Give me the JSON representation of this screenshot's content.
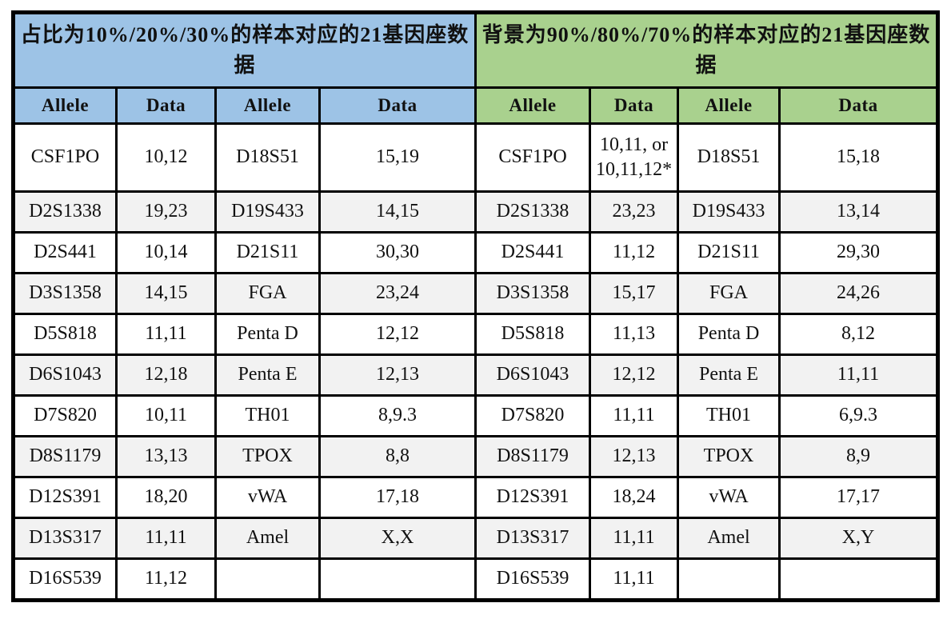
{
  "table": {
    "left": {
      "title": "占比为10%/20%/30%的样本对应的21基因座数据",
      "header_color": "#9DC3E6",
      "columns": [
        "Allele",
        "Data",
        "Allele",
        "Data"
      ],
      "rows": [
        [
          "CSF1PO",
          "10,12",
          "D18S51",
          "15,19"
        ],
        [
          "D2S1338",
          "19,23",
          "D19S433",
          "14,15"
        ],
        [
          "D2S441",
          "10,14",
          "D21S11",
          "30,30"
        ],
        [
          "D3S1358",
          "14,15",
          "FGA",
          "23,24"
        ],
        [
          "D5S818",
          "11,11",
          "Penta D",
          "12,12"
        ],
        [
          "D6S1043",
          "12,18",
          "Penta E",
          "12,13"
        ],
        [
          "D7S820",
          "10,11",
          "TH01",
          "8,9.3"
        ],
        [
          "D8S1179",
          "13,13",
          "TPOX",
          "8,8"
        ],
        [
          "D12S391",
          "18,20",
          "vWA",
          "17,18"
        ],
        [
          "D13S317",
          "11,11",
          "Amel",
          "X,X"
        ],
        [
          "D16S539",
          "11,12",
          "",
          ""
        ]
      ]
    },
    "right": {
      "title": "背景为90%/80%/70%的样本对应的21基因座数据",
      "header_color": "#A9D18E",
      "columns": [
        "Allele",
        "Data",
        "Allele",
        "Data"
      ],
      "rows": [
        [
          "CSF1PO",
          "10,11, or\n10,11,12*",
          "D18S51",
          "15,18"
        ],
        [
          "D2S1338",
          "23,23",
          "D19S433",
          "13,14"
        ],
        [
          "D2S441",
          "11,12",
          "D21S11",
          "29,30"
        ],
        [
          "D3S1358",
          "15,17",
          "FGA",
          "24,26"
        ],
        [
          "D5S818",
          "11,13",
          "Penta D",
          "8,12"
        ],
        [
          "D6S1043",
          "12,12",
          "Penta E",
          "11,11"
        ],
        [
          "D7S820",
          "11,11",
          "TH01",
          "6,9.3"
        ],
        [
          "D8S1179",
          "12,13",
          "TPOX",
          "8,9"
        ],
        [
          "D12S391",
          "18,24",
          "vWA",
          "17,17"
        ],
        [
          "D13S317",
          "11,11",
          "Amel",
          "X,Y"
        ],
        [
          "D16S539",
          "11,11",
          "",
          ""
        ]
      ]
    }
  }
}
